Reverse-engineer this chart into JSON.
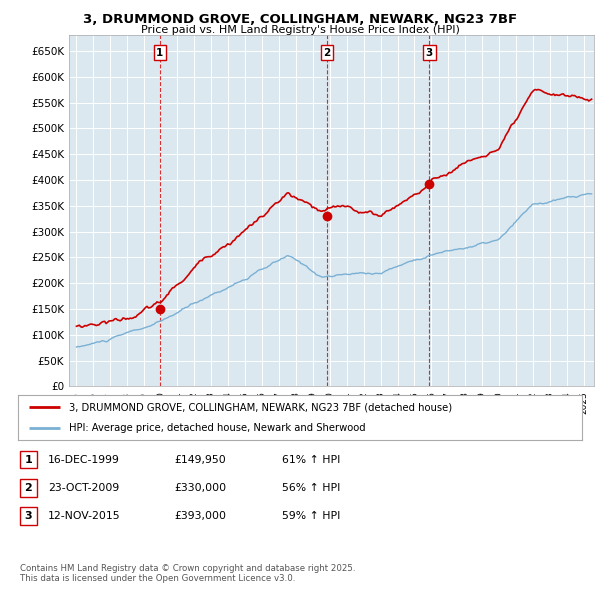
{
  "title": "3, DRUMMOND GROVE, COLLINGHAM, NEWARK, NG23 7BF",
  "subtitle": "Price paid vs. HM Land Registry's House Price Index (HPI)",
  "sale_year_floats": [
    1999.958,
    2009.833,
    2015.875
  ],
  "sale_prices": [
    149950,
    330000,
    393000
  ],
  "sale_labels": [
    "1",
    "2",
    "3"
  ],
  "legend_house": "3, DRUMMOND GROVE, COLLINGHAM, NEWARK, NG23 7BF (detached house)",
  "legend_hpi": "HPI: Average price, detached house, Newark and Sherwood",
  "table_rows": [
    [
      "1",
      "16-DEC-1999",
      "£149,950",
      "61% ↑ HPI"
    ],
    [
      "2",
      "23-OCT-2009",
      "£330,000",
      "56% ↑ HPI"
    ],
    [
      "3",
      "12-NOV-2015",
      "£393,000",
      "59% ↑ HPI"
    ]
  ],
  "footer": "Contains HM Land Registry data © Crown copyright and database right 2025.\nThis data is licensed under the Open Government Licence v3.0.",
  "house_color": "#cc0000",
  "hpi_color": "#7ab0d4",
  "vline_color": "#cc0000",
  "chart_bg": "#dce8f0",
  "background_color": "#ffffff",
  "ylim": [
    0,
    680000
  ],
  "yticks": [
    0,
    50000,
    100000,
    150000,
    200000,
    250000,
    300000,
    350000,
    400000,
    450000,
    500000,
    550000,
    600000,
    650000
  ],
  "xlim_start": 1994.6,
  "xlim_end": 2025.6
}
